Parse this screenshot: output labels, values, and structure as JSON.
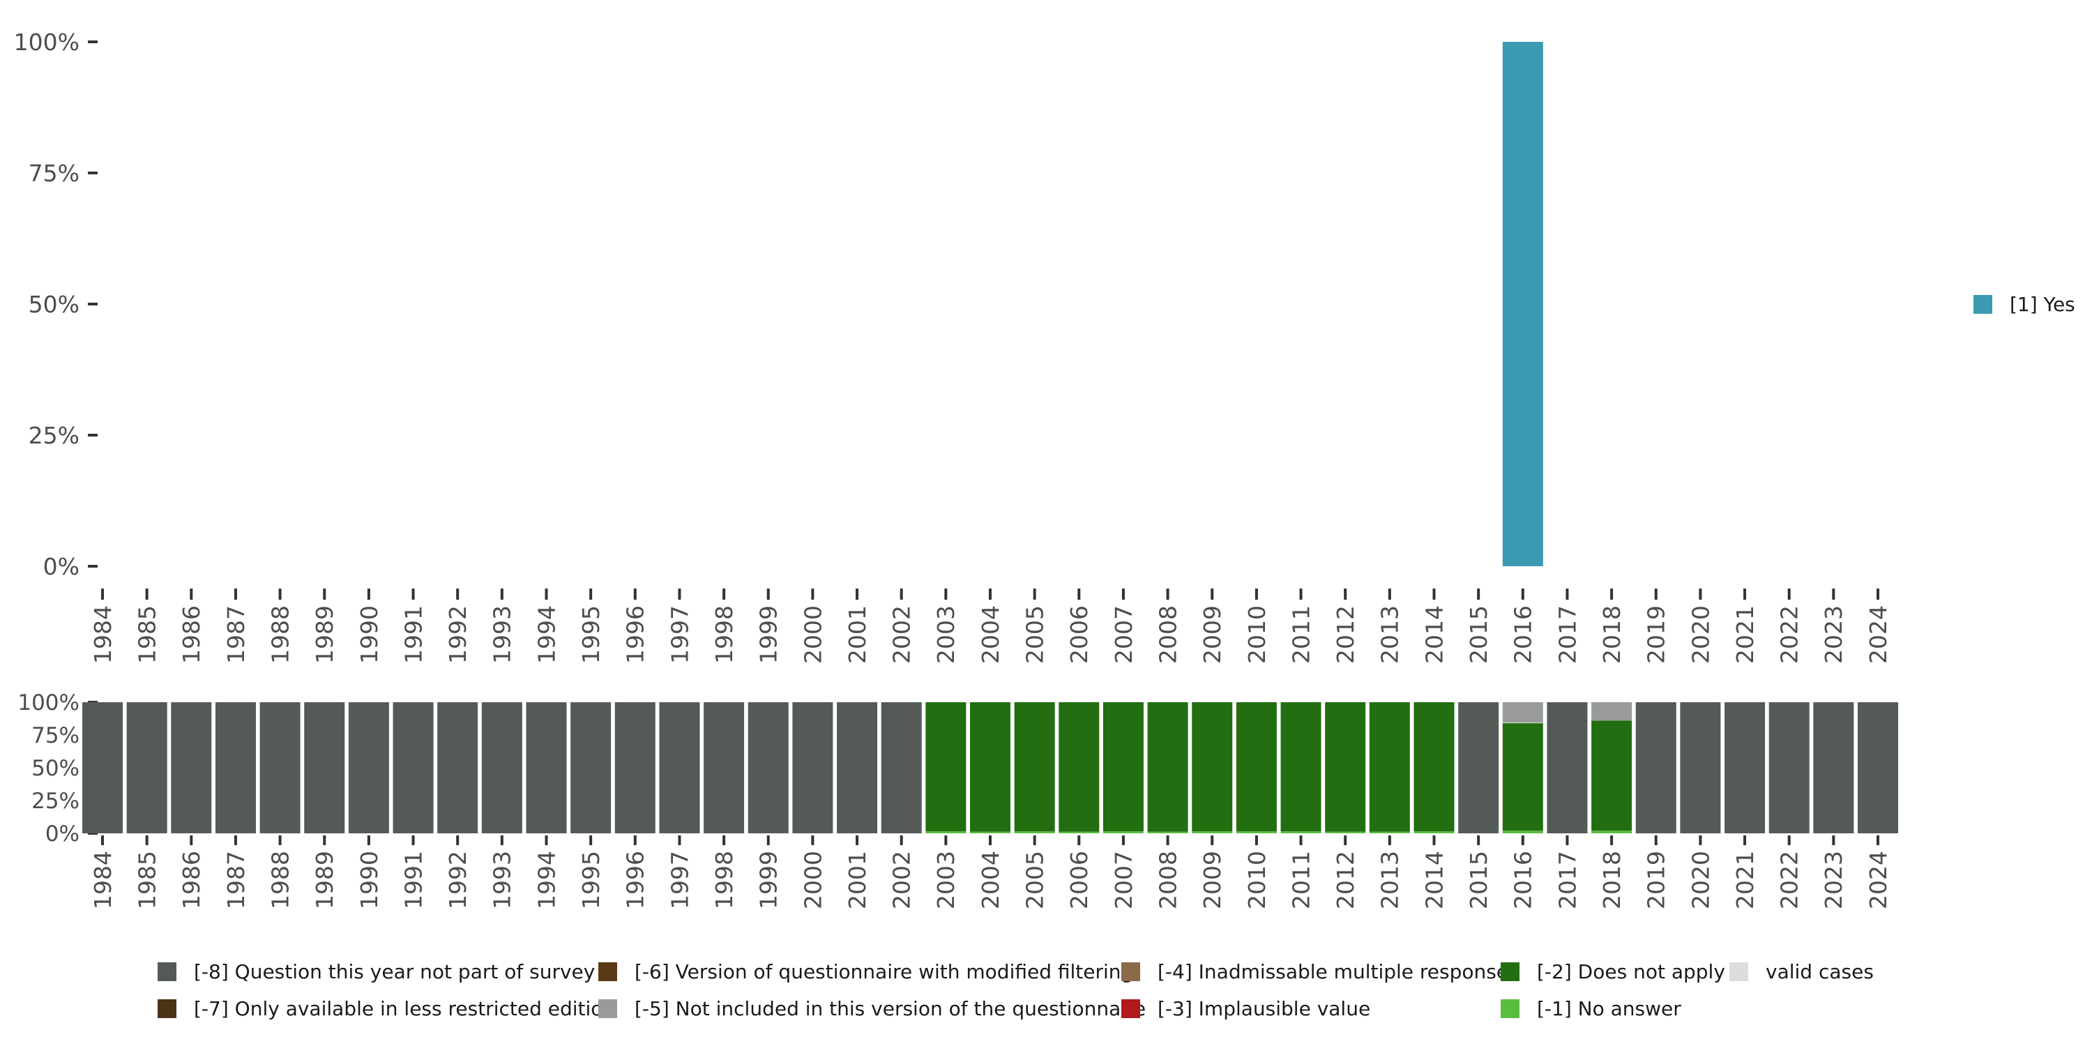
{
  "chart_data": [
    {
      "type": "bar",
      "stacked": true,
      "title": "",
      "xlabel": "",
      "ylabel": "",
      "ylim": [
        0,
        100
      ],
      "y_ticks": [
        "0%",
        "25%",
        "50%",
        "75%",
        "100%"
      ],
      "y_tick_values": [
        0,
        25,
        50,
        75,
        100
      ],
      "categories": [
        "1984",
        "1985",
        "1986",
        "1987",
        "1988",
        "1989",
        "1990",
        "1991",
        "1992",
        "1993",
        "1994",
        "1995",
        "1996",
        "1997",
        "1998",
        "1999",
        "2000",
        "2001",
        "2002",
        "2003",
        "2004",
        "2005",
        "2006",
        "2007",
        "2008",
        "2009",
        "2010",
        "2011",
        "2012",
        "2013",
        "2014",
        "2015",
        "2016",
        "2017",
        "2018",
        "2019",
        "2020",
        "2021",
        "2022",
        "2023",
        "2024"
      ],
      "series": [
        {
          "name": "[1] Yes",
          "color": "#3b9ab2",
          "values": [
            0,
            0,
            0,
            0,
            0,
            0,
            0,
            0,
            0,
            0,
            0,
            0,
            0,
            0,
            0,
            0,
            0,
            0,
            0,
            0,
            0,
            0,
            0,
            0,
            0,
            0,
            0,
            0,
            0,
            0,
            0,
            0,
            100,
            0,
            0,
            0,
            0,
            0,
            0,
            0,
            0
          ]
        }
      ],
      "legend_position": "right"
    },
    {
      "type": "bar",
      "stacked": true,
      "title": "",
      "xlabel": "",
      "ylabel": "",
      "ylim": [
        0,
        100
      ],
      "y_ticks": [
        "0%",
        "25%",
        "50%",
        "75%",
        "100%"
      ],
      "y_tick_values": [
        0,
        25,
        50,
        75,
        100
      ],
      "categories": [
        "1984",
        "1985",
        "1986",
        "1987",
        "1988",
        "1989",
        "1990",
        "1991",
        "1992",
        "1993",
        "1994",
        "1995",
        "1996",
        "1997",
        "1998",
        "1999",
        "2000",
        "2001",
        "2002",
        "2003",
        "2004",
        "2005",
        "2006",
        "2007",
        "2008",
        "2009",
        "2010",
        "2011",
        "2012",
        "2013",
        "2014",
        "2015",
        "2016",
        "2017",
        "2018",
        "2019",
        "2020",
        "2021",
        "2022",
        "2023",
        "2024"
      ],
      "series": [
        {
          "name": "[-1] No answer",
          "color": "#5bbd40",
          "values": [
            0,
            0,
            0,
            0,
            0,
            0,
            0,
            0,
            0,
            0,
            0,
            0,
            0,
            0,
            0,
            0,
            0,
            0,
            0,
            1.5,
            1.2,
            1.5,
            1.2,
            1.5,
            1.2,
            1.5,
            1.5,
            1.5,
            1.2,
            1.2,
            1.5,
            0,
            2,
            0,
            2,
            0,
            0,
            0,
            0,
            0,
            0
          ]
        },
        {
          "name": "[-2] Does not apply",
          "color": "#236e10",
          "values": [
            0,
            0,
            0,
            0,
            0,
            0,
            0,
            0,
            0,
            0,
            0,
            0,
            0,
            0,
            0,
            0,
            0,
            0,
            0,
            98.5,
            98.8,
            98.5,
            98.8,
            98.5,
            98.8,
            98.5,
            98.5,
            98.5,
            98.8,
            98.8,
            98.5,
            0,
            82,
            0,
            84,
            0,
            0,
            0,
            0,
            0,
            0
          ]
        },
        {
          "name": "valid cases",
          "color": "#dcdedc",
          "values": [
            0,
            0,
            0,
            0,
            0,
            0,
            0,
            0,
            0,
            0,
            0,
            0,
            0,
            0,
            0,
            0,
            0,
            0,
            0,
            0,
            0,
            0,
            0,
            0,
            0,
            0,
            0,
            0,
            0,
            0,
            0,
            0,
            0.5,
            0,
            0,
            0,
            0,
            0,
            0,
            0,
            0
          ]
        },
        {
          "name": "[-5] Not included in this version of the questionnaire",
          "color": "#999b98",
          "values": [
            0,
            0,
            0,
            0,
            0,
            0,
            0,
            0,
            0,
            0,
            0,
            0,
            0,
            0,
            0,
            0,
            0,
            0,
            0,
            0,
            0,
            0,
            0,
            0,
            0,
            0,
            0,
            0,
            0,
            0,
            0,
            0,
            15.5,
            0,
            14,
            0,
            0,
            0,
            0,
            0,
            0
          ]
        },
        {
          "name": "[-8] Question this year not part of survey",
          "color": "#545b56",
          "values": [
            100,
            100,
            100,
            100,
            100,
            100,
            100,
            100,
            100,
            100,
            100,
            100,
            100,
            100,
            100,
            100,
            100,
            100,
            100,
            0,
            0,
            0,
            0,
            0,
            0,
            0,
            0,
            0,
            0,
            0,
            0,
            100,
            0,
            100,
            0,
            100,
            100,
            100,
            100,
            100,
            100
          ]
        }
      ],
      "legend_position": "bottom"
    }
  ],
  "legend_right": [
    {
      "label": "[1] Yes",
      "color": "#3b9ab2"
    }
  ],
  "legend_bottom": [
    {
      "label": "[-8] Question this year not part of survey",
      "color": "#545b56"
    },
    {
      "label": "[-6] Version of questionnaire with modified filtering",
      "color": "#5a3a16"
    },
    {
      "label": "[-4] Inadmissable multiple response",
      "color": "#8c6a48"
    },
    {
      "label": "[-2] Does not apply",
      "color": "#236e10"
    },
    {
      "label": "valid cases",
      "color": "#dcdedc"
    },
    {
      "label": "[-7] Only available in less restricted edition",
      "color": "#4a3317"
    },
    {
      "label": "[-5] Not included in this version of the questionnaire",
      "color": "#999b98"
    },
    {
      "label": "[-3] Implausible value",
      "color": "#b0191e"
    },
    {
      "label": "[-1] No answer",
      "color": "#5bbd40"
    }
  ]
}
